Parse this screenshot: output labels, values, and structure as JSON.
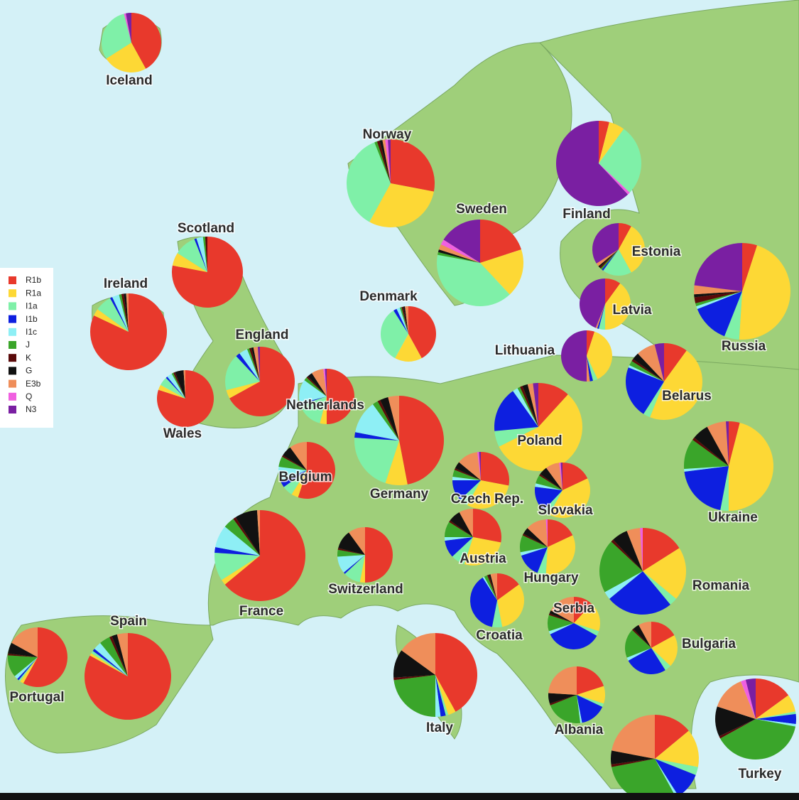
{
  "legend": [
    {
      "name": "R1b",
      "color": "#e8392c"
    },
    {
      "name": "R1a",
      "color": "#fdd835"
    },
    {
      "name": "I1a",
      "color": "#7ff0a8"
    },
    {
      "name": "I1b",
      "color": "#0d1fe0"
    },
    {
      "name": "I1c",
      "color": "#8eeff5"
    },
    {
      "name": "J",
      "color": "#3aa52a"
    },
    {
      "name": "K",
      "color": "#5a0a0a"
    },
    {
      "name": "G",
      "color": "#111111"
    },
    {
      "name": "E3b",
      "color": "#ef8e5a"
    },
    {
      "name": "Q",
      "color": "#f060e0"
    },
    {
      "name": "N3",
      "color": "#7a1fa2"
    }
  ],
  "regions": [
    {
      "label": "Iceland",
      "values": [
        42,
        24,
        30,
        0,
        0,
        0,
        0,
        0,
        0,
        1,
        3
      ]
    },
    {
      "label": "Norway",
      "values": [
        28,
        30,
        36,
        0,
        0,
        1,
        1,
        1,
        1,
        1,
        1
      ]
    },
    {
      "label": "Finland",
      "values": [
        4,
        6,
        27,
        0,
        0,
        0,
        0,
        0,
        0,
        1,
        62
      ]
    },
    {
      "label": "Sweden",
      "values": [
        20,
        18,
        40,
        0,
        0,
        1,
        0,
        1,
        2,
        2,
        16
      ]
    },
    {
      "label": "Scotland",
      "values": [
        78,
        6,
        10,
        1,
        3,
        1,
        1,
        0,
        0,
        0,
        0
      ]
    },
    {
      "label": "Ireland",
      "values": [
        82,
        3,
        7,
        1,
        3,
        1,
        1,
        1,
        1,
        0,
        0
      ]
    },
    {
      "label": "Estonia",
      "values": [
        8,
        34,
        18,
        1,
        0,
        1,
        1,
        1,
        2,
        0,
        34
      ]
    },
    {
      "label": "Latvia",
      "values": [
        10,
        40,
        4,
        1,
        0,
        0,
        0,
        0,
        1,
        0,
        44
      ]
    },
    {
      "label": "Russia",
      "values": [
        5,
        46,
        5,
        13,
        1,
        1,
        2,
        1,
        3,
        0,
        23
      ]
    },
    {
      "label": "Denmark",
      "values": [
        42,
        16,
        33,
        2,
        2,
        1,
        1,
        1,
        2,
        0,
        0
      ]
    },
    {
      "label": "England",
      "values": [
        67,
        4,
        17,
        2,
        4,
        1,
        1,
        1,
        2,
        0,
        1
      ]
    },
    {
      "label": "Wales",
      "values": [
        80,
        3,
        5,
        1,
        3,
        1,
        1,
        5,
        1,
        0,
        0
      ]
    },
    {
      "label": "Lithuania",
      "values": [
        5,
        38,
        3,
        2,
        0,
        0,
        0,
        0,
        2,
        0,
        50
      ]
    },
    {
      "label": "Netherlands",
      "values": [
        50,
        4,
        16,
        1,
        14,
        2,
        1,
        3,
        7,
        1,
        1
      ]
    },
    {
      "label": "Belarus",
      "values": [
        10,
        46,
        3,
        22,
        1,
        2,
        1,
        3,
        8,
        0,
        4
      ]
    },
    {
      "label": "Poland",
      "values": [
        12,
        57,
        6,
        17,
        2,
        1,
        1,
        2,
        2,
        0,
        2
      ]
    },
    {
      "label": "Germany",
      "values": [
        47,
        8,
        21,
        2,
        12,
        2,
        1,
        3,
        4,
        0,
        0
      ]
    },
    {
      "label": "Belgium",
      "values": [
        55,
        4,
        6,
        4,
        8,
        6,
        1,
        6,
        10,
        0,
        0
      ]
    },
    {
      "label": "Czech Rep.",
      "values": [
        28,
        30,
        5,
        12,
        2,
        4,
        1,
        4,
        12,
        1,
        1
      ]
    },
    {
      "label": "Slovakia",
      "values": [
        18,
        40,
        4,
        15,
        2,
        5,
        1,
        5,
        8,
        1,
        1
      ]
    },
    {
      "label": "Ukraine",
      "values": [
        4,
        46,
        3,
        20,
        1,
        11,
        1,
        6,
        7,
        0,
        1
      ]
    },
    {
      "label": "France",
      "values": [
        64,
        2,
        10,
        2,
        8,
        4,
        1,
        8,
        1,
        0,
        0
      ]
    },
    {
      "label": "Switzerland",
      "values": [
        50,
        3,
        10,
        1,
        10,
        4,
        1,
        11,
        10,
        0,
        0
      ]
    },
    {
      "label": "Austria",
      "values": [
        28,
        27,
        8,
        10,
        2,
        9,
        1,
        7,
        8,
        0,
        0
      ]
    },
    {
      "label": "Hungary",
      "values": [
        18,
        33,
        5,
        14,
        2,
        10,
        1,
        4,
        12,
        1,
        0
      ]
    },
    {
      "label": "Romania",
      "values": [
        16,
        20,
        3,
        25,
        3,
        20,
        1,
        6,
        5,
        1,
        0
      ]
    },
    {
      "label": "Spain",
      "values": [
        83,
        1,
        1,
        1,
        3,
        4,
        1,
        2,
        4,
        0,
        0
      ]
    },
    {
      "label": "Portugal",
      "values": [
        58,
        2,
        1,
        1,
        2,
        12,
        1,
        6,
        17,
        0,
        0
      ]
    },
    {
      "label": "Italy",
      "values": [
        42,
        3,
        1,
        2,
        2,
        23,
        1,
        11,
        15,
        0,
        0
      ]
    },
    {
      "label": "Croatia",
      "values": [
        15,
        32,
        6,
        38,
        1,
        2,
        1,
        1,
        4,
        0,
        0
      ]
    },
    {
      "label": "Serbia",
      "values": [
        12,
        18,
        3,
        35,
        2,
        10,
        1,
        2,
        17,
        0,
        0
      ]
    },
    {
      "label": "Bulgaria",
      "values": [
        17,
        20,
        4,
        26,
        2,
        18,
        1,
        4,
        8,
        0,
        0
      ]
    },
    {
      "label": "Albania",
      "values": [
        20,
        10,
        2,
        15,
        1,
        21,
        1,
        6,
        24,
        0,
        0
      ]
    },
    {
      "label": null,
      "values": [
        14,
        14,
        3,
        10,
        1,
        30,
        1,
        5,
        22,
        0,
        0
      ]
    },
    {
      "label": "Turkey",
      "values": [
        15,
        7,
        1,
        4,
        1,
        39,
        1,
        12,
        14,
        2,
        4
      ]
    }
  ]
}
